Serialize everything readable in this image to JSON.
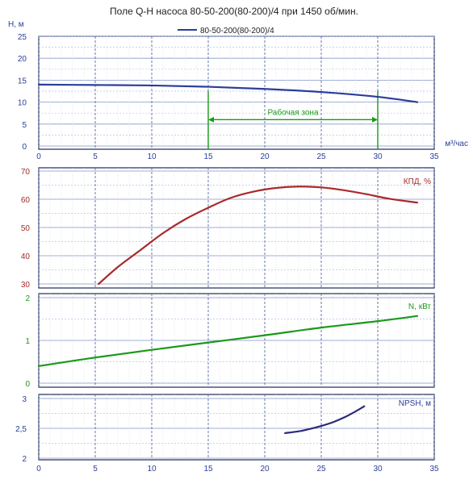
{
  "chart_data": [
    {
      "id": "head",
      "type": "line",
      "title": "Поле Q-H насоса 80-50-200(80-200)/4 при 1450 об/мин.",
      "legend": "80-50-200(80-200)/4",
      "ylabel": "H, м",
      "xlabel": "м³/час",
      "xlim": [
        0,
        35
      ],
      "ylim": [
        0,
        25
      ],
      "x_ticks": [
        "0",
        "5",
        "10",
        "15",
        "20",
        "25",
        "30",
        "35"
      ],
      "y_ticks": [
        "0",
        "5",
        "10",
        "15",
        "20",
        "25"
      ],
      "color": "#2a3e9a",
      "tick_color": "#2a3e9a",
      "series": [
        {
          "x": [
            0,
            5,
            10,
            15,
            20,
            25,
            30,
            33.5
          ],
          "y": [
            14,
            13.9,
            13.8,
            13.5,
            13.0,
            12.3,
            11.2,
            10.0
          ]
        }
      ],
      "annotation": {
        "label": "Рабочая зона",
        "x_start": 15,
        "x_end": 30,
        "y_arrow": 6,
        "color": "#1a9a1a"
      }
    },
    {
      "id": "efficiency",
      "type": "line",
      "ylabel": "КПД, %",
      "xlim": [
        0,
        35
      ],
      "ylim": [
        30,
        70
      ],
      "y_ticks": [
        "30",
        "40",
        "50",
        "60",
        "70"
      ],
      "color": "#a82a2a",
      "tick_color": "#a82a2a",
      "series": [
        {
          "x": [
            5.3,
            7,
            9,
            11,
            13,
            15,
            17,
            19,
            21,
            23,
            25,
            27,
            29,
            31,
            33.5
          ],
          "y": [
            30,
            36,
            42,
            48,
            53,
            57,
            60.5,
            62.7,
            64,
            64.5,
            64.2,
            63.2,
            61.8,
            60.2,
            58.8
          ]
        }
      ]
    },
    {
      "id": "power",
      "type": "line",
      "ylabel": "N, кВт",
      "xlim": [
        0,
        35
      ],
      "ylim": [
        0,
        2
      ],
      "y_ticks": [
        "0",
        "1",
        "2"
      ],
      "color": "#1a9a1a",
      "tick_color": "#1a9a1a",
      "series": [
        {
          "x": [
            0,
            5,
            10,
            15,
            20,
            25,
            30,
            33.5
          ],
          "y": [
            0.4,
            0.6,
            0.78,
            0.95,
            1.12,
            1.3,
            1.45,
            1.57
          ]
        }
      ]
    },
    {
      "id": "npsh",
      "type": "line",
      "ylabel": "NPSH, м",
      "xlabel": "",
      "xlim": [
        0,
        35
      ],
      "ylim": [
        2,
        3
      ],
      "x_ticks": [
        "0",
        "5",
        "10",
        "15",
        "20",
        "25",
        "30",
        "35"
      ],
      "y_ticks": [
        "2",
        "2,5",
        "3"
      ],
      "color": "#2a2a7a",
      "tick_color": "#2a3e9a",
      "series": [
        {
          "x": [
            21.8,
            23,
            24,
            25,
            26,
            27,
            28,
            28.8
          ],
          "y": [
            2.42,
            2.45,
            2.49,
            2.54,
            2.6,
            2.68,
            2.78,
            2.87
          ]
        }
      ]
    }
  ]
}
